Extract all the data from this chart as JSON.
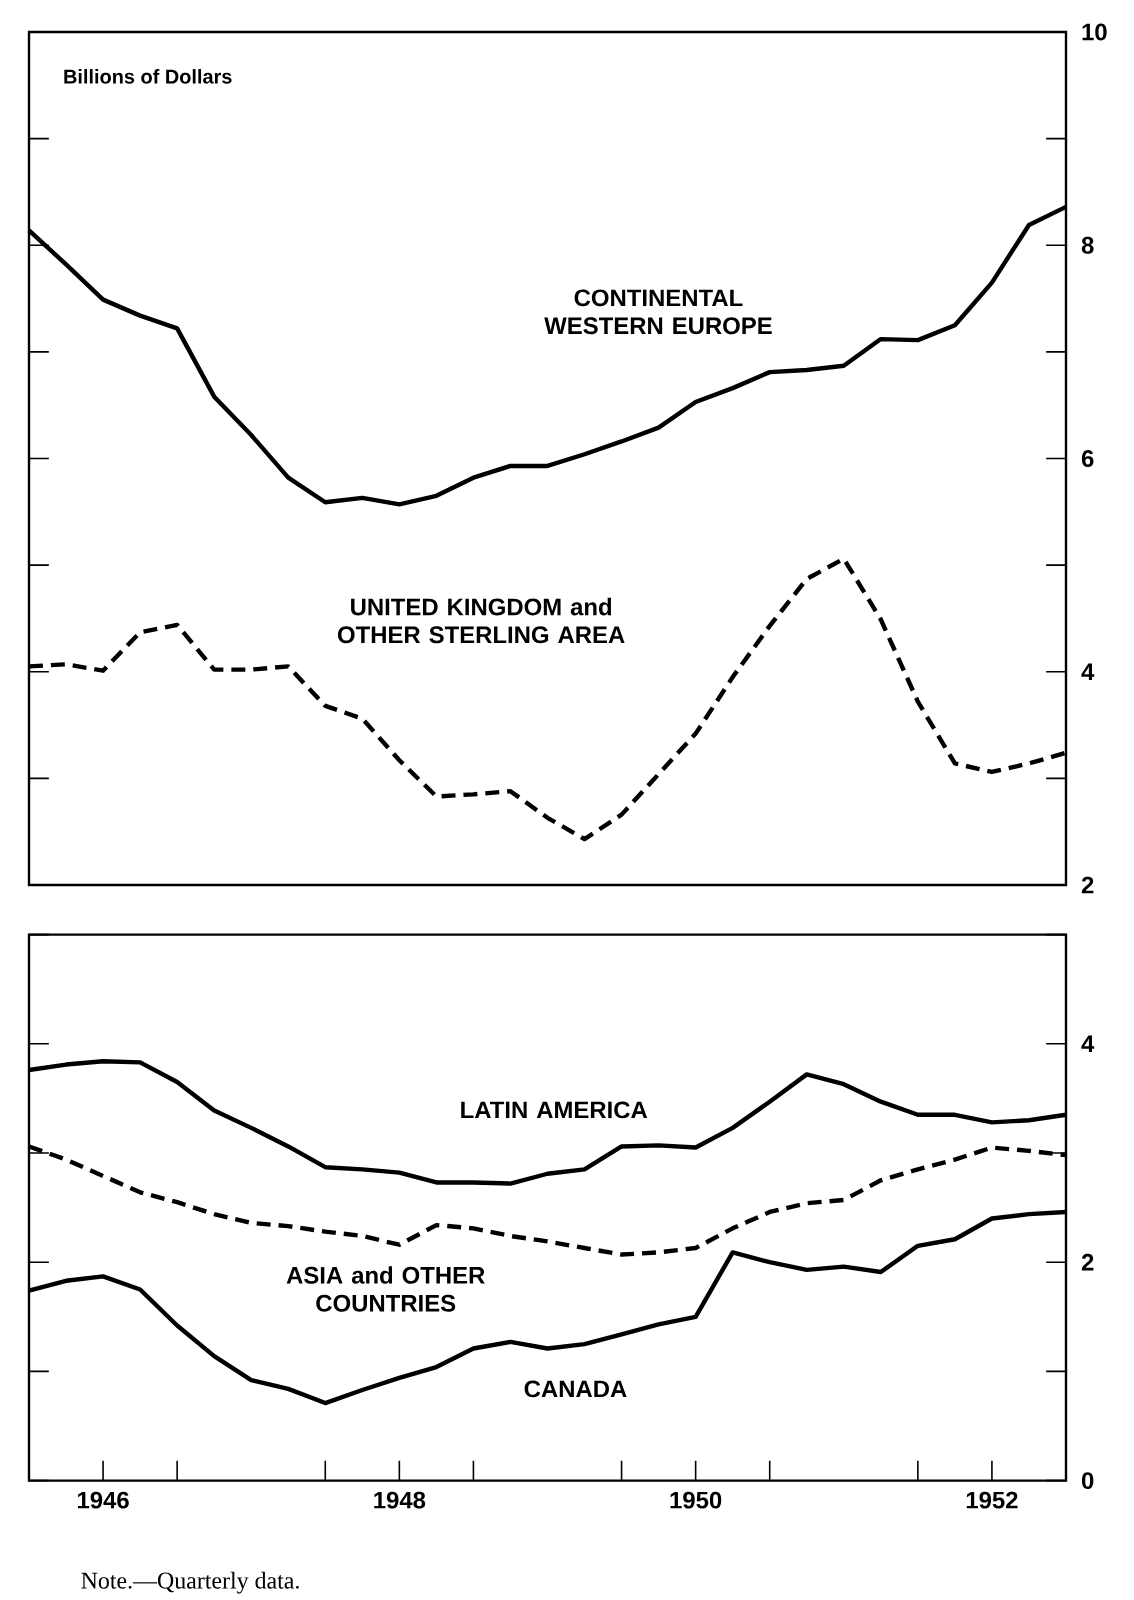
{
  "chart_data": [
    {
      "type": "line",
      "ylabel": "Billions of Dollars",
      "x": [
        1946,
        1946.25,
        1946.5,
        1946.75,
        1947,
        1947.25,
        1947.5,
        1947.75,
        1948,
        1948.25,
        1948.5,
        1948.75,
        1949,
        1949.25,
        1949.5,
        1949.75,
        1950,
        1950.25,
        1950.5,
        1950.75,
        1951,
        1951.25,
        1951.5,
        1951.75,
        1952,
        1952.25,
        1952.5,
        1952.75,
        1953
      ],
      "xlim": [
        1946,
        1953
      ],
      "ylim": [
        2,
        10
      ],
      "yticks": [
        2,
        {
          "value": 3,
          "label": null
        },
        4,
        {
          "value": 5,
          "label": null
        },
        6,
        {
          "value": 7,
          "label": null
        },
        8,
        {
          "value": 9,
          "label": null
        },
        10
      ],
      "tick_labels": "y",
      "series": [
        {
          "name": "CONTINENTAL WESTERN EUROPE",
          "color": "#000000",
          "line_style": "solid",
          "values": [
            8.14,
            7.82,
            7.49,
            7.34,
            7.22,
            6.58,
            6.22,
            5.82,
            5.59,
            5.63,
            5.57,
            5.65,
            5.82,
            5.93,
            5.93,
            6.04,
            6.16,
            6.29,
            6.53,
            6.66,
            6.81,
            6.83,
            6.87,
            7.12,
            7.11,
            7.25,
            7.65,
            8.19,
            8.36
          ]
        },
        {
          "name": "UNITED KINGDOM and OTHER STERLING AREA",
          "color": "#000000",
          "line_style": "dashed",
          "values": [
            4.05,
            4.07,
            4.01,
            4.37,
            4.44,
            4.02,
            4.02,
            4.05,
            3.68,
            3.56,
            3.17,
            2.83,
            2.85,
            2.88,
            2.63,
            2.43,
            2.66,
            3.04,
            3.42,
            3.95,
            4.43,
            4.87,
            5.06,
            4.49,
            3.72,
            3.14,
            3.06,
            3.14,
            3.24
          ]
        }
      ]
    },
    {
      "type": "line",
      "x": [
        1946,
        1946.25,
        1946.5,
        1946.75,
        1947,
        1947.25,
        1947.5,
        1947.75,
        1948,
        1948.25,
        1948.5,
        1948.75,
        1949,
        1949.25,
        1949.5,
        1949.75,
        1950,
        1950.25,
        1950.5,
        1950.75,
        1951,
        1951.25,
        1951.5,
        1951.75,
        1952,
        1952.25,
        1952.5,
        1952.75,
        1953
      ],
      "xlim": [
        1946,
        1953
      ],
      "ylim": [
        0,
        5
      ],
      "yticks": [
        0,
        {
          "value": 1,
          "label": null
        },
        2,
        {
          "value": 3,
          "label": null
        },
        4,
        {
          "value": 5,
          "label": null
        }
      ],
      "xticks": [
        {
          "value": 1946.5,
          "label": "1946"
        },
        {
          "value": 1947,
          "label": null
        },
        {
          "value": 1948,
          "label": null
        },
        {
          "value": 1948.5,
          "label": "1948"
        },
        {
          "value": 1949,
          "label": null
        },
        {
          "value": 1950,
          "label": null
        },
        {
          "value": 1950.5,
          "label": "1950"
        },
        {
          "value": 1951,
          "label": null
        },
        {
          "value": 1952,
          "label": null
        },
        {
          "value": 1952.5,
          "label": "1952"
        }
      ],
      "annotations": [
        "Note.—Quarterly data."
      ],
      "series": [
        {
          "name": "LATIN AMERICA",
          "color": "#000000",
          "line_style": "solid",
          "values": [
            3.76,
            3.81,
            3.84,
            3.83,
            3.65,
            3.39,
            3.23,
            3.06,
            2.87,
            2.85,
            2.82,
            2.73,
            2.73,
            2.72,
            2.81,
            2.85,
            3.06,
            3.07,
            3.05,
            3.23,
            3.47,
            3.72,
            3.63,
            3.47,
            3.35,
            3.35,
            3.28,
            3.3,
            3.35
          ]
        },
        {
          "name": "ASIA and OTHER COUNTRIES",
          "color": "#000000",
          "line_style": "dashed",
          "values": [
            3.06,
            2.94,
            2.79,
            2.64,
            2.55,
            2.44,
            2.36,
            2.33,
            2.28,
            2.24,
            2.16,
            2.34,
            2.31,
            2.24,
            2.19,
            2.13,
            2.07,
            2.09,
            2.13,
            2.31,
            2.46,
            2.54,
            2.57,
            2.75,
            2.85,
            2.94,
            3.05,
            3.02,
            2.98
          ]
        },
        {
          "name": "CANADA",
          "color": "#000000",
          "line_style": "solid",
          "values": [
            1.74,
            1.83,
            1.87,
            1.75,
            1.42,
            1.14,
            0.92,
            0.84,
            0.71,
            0.83,
            0.94,
            1.04,
            1.21,
            1.27,
            1.21,
            1.25,
            1.34,
            1.43,
            1.5,
            2.09,
            2.0,
            1.93,
            1.96,
            1.91,
            2.15,
            2.21,
            2.4,
            2.44,
            2.46
          ]
        }
      ]
    }
  ]
}
